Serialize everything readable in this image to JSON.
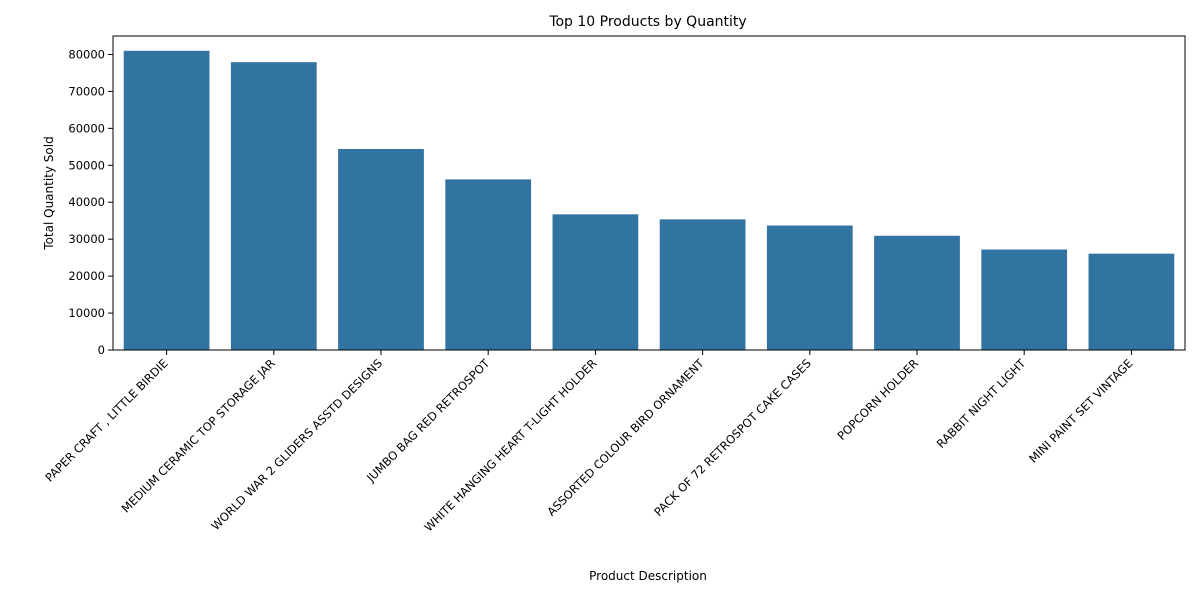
{
  "chart_data": {
    "type": "bar",
    "title": "Top 10 Products by Quantity",
    "xlabel": "Product Description",
    "ylabel": "Total Quantity Sold",
    "categories": [
      "PAPER CRAFT , LITTLE BIRDIE",
      "MEDIUM CERAMIC TOP STORAGE JAR",
      "WORLD WAR 2 GLIDERS ASSTD DESIGNS",
      "JUMBO BAG RED RETROSPOT",
      "WHITE HANGING HEART T-LIGHT HOLDER",
      "ASSORTED COLOUR BIRD ORNAMENT",
      "PACK OF 72 RETROSPOT CAKE CASES",
      "POPCORN HOLDER",
      "RABBIT NIGHT LIGHT",
      "MINI PAINT SET VINTAGE"
    ],
    "values": [
      80995,
      77916,
      54415,
      46181,
      36725,
      35362,
      33693,
      30931,
      27202,
      26076
    ],
    "ylim": [
      0,
      85000
    ],
    "yticks": [
      0,
      10000,
      20000,
      30000,
      40000,
      50000,
      60000,
      70000,
      80000
    ],
    "grid": false,
    "bar_color": "#3274a1"
  }
}
